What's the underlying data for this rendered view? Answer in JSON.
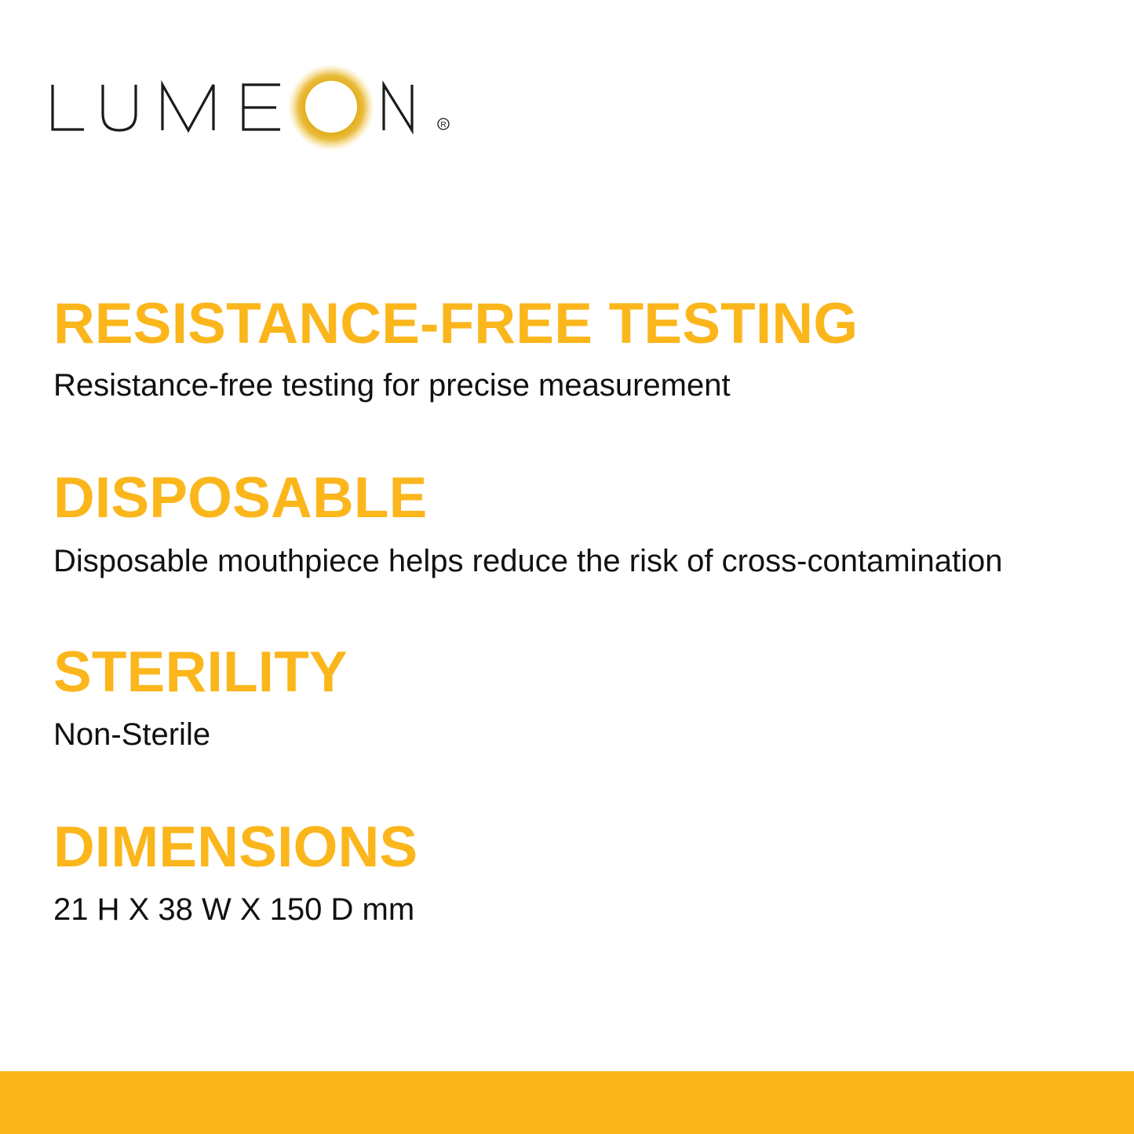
{
  "brand": {
    "logo_text": "LUMEON",
    "registered_mark": "®",
    "glow_color": "#E2AE1C"
  },
  "accent_color": "#FBB61C",
  "sections": [
    {
      "heading": "RESISTANCE-FREE TESTING",
      "text": "Resistance-free testing for precise measurement"
    },
    {
      "heading": "DISPOSABLE",
      "text": "Disposable mouthpiece helps reduce the risk of cross-contamination"
    },
    {
      "heading": "STERILITY",
      "text": "Non-Sterile"
    },
    {
      "heading": "DIMENSIONS",
      "text": "21 H X 38 W X 150 D mm"
    }
  ]
}
